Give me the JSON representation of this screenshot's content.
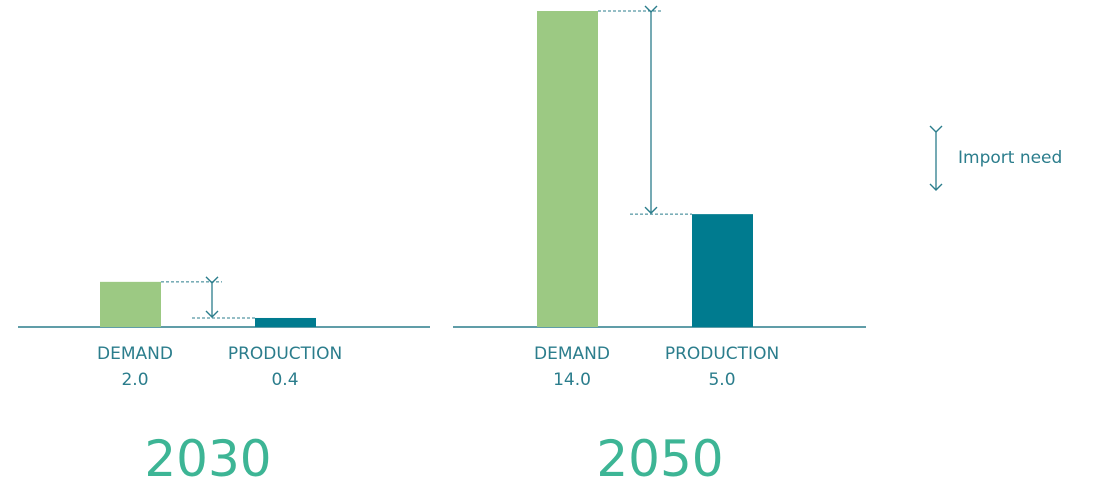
{
  "chart_data": [
    {
      "type": "bar",
      "title": "2030",
      "categories": [
        "DEMAND",
        "PRODUCTION"
      ],
      "values": [
        2.0,
        0.4
      ],
      "value_labels": [
        "2.0",
        "0.4"
      ],
      "colors": [
        "#9cc983",
        "#007b8f"
      ]
    },
    {
      "type": "bar",
      "title": "2050",
      "categories": [
        "DEMAND",
        "PRODUCTION"
      ],
      "values": [
        14.0,
        5.0
      ],
      "value_labels": [
        "14.0",
        "5.0"
      ],
      "colors": [
        "#9cc983",
        "#007b8f"
      ]
    }
  ],
  "legend": {
    "label": "Import need",
    "icon": "double-arrow-icon"
  },
  "colors": {
    "axis": "#2b7d8c",
    "annotation": "#2b7d8c",
    "year": "#3db595"
  }
}
